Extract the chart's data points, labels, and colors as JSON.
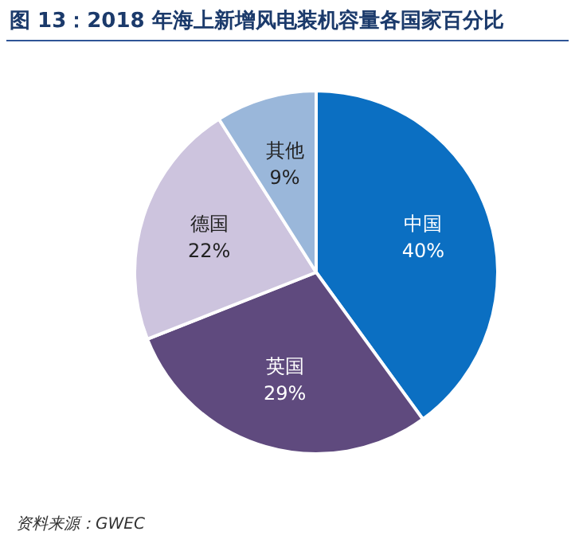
{
  "chart_data": {
    "type": "pie",
    "title": "图 13：2018 年海上新增风电装机容量各国家百分比",
    "categories": [
      "中国",
      "英国",
      "德国",
      "其他"
    ],
    "values": [
      40,
      29,
      22,
      9
    ],
    "value_labels": [
      "40%",
      "29%",
      "22%",
      "9%"
    ],
    "colors": [
      "#0b6fc2",
      "#5f4a7e",
      "#cdc4de",
      "#9ab7da"
    ],
    "legend": false,
    "annotations": [
      "资料来源：GWEC"
    ]
  }
}
